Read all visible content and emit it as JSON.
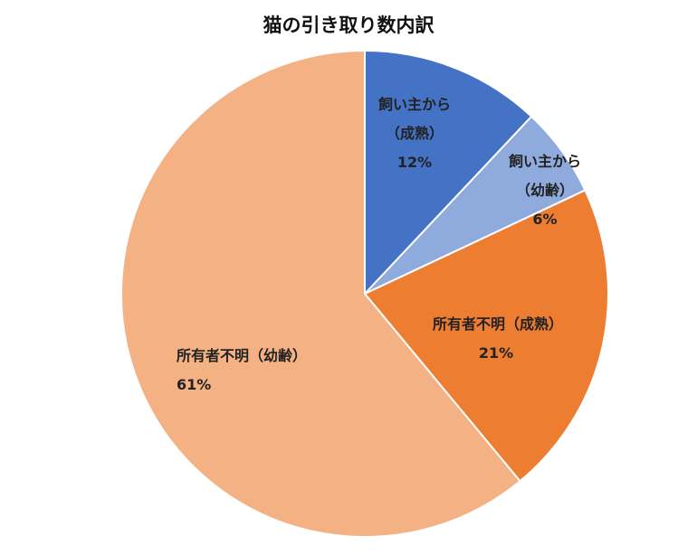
{
  "chart_data": {
    "type": "pie",
    "title": "猫の引き取り数内訳",
    "categories": [
      "飼い主から（成熟）",
      "飼い主から（幼齢）",
      "所有者不明（成熟）",
      "所有者不明（幼齢）"
    ],
    "values": [
      12,
      6,
      21,
      61
    ],
    "value_labels": [
      "12%",
      "6%",
      "21%",
      "61%"
    ],
    "colors": [
      "#4472c4",
      "#8faadc",
      "#ed7d31",
      "#f4b183"
    ]
  }
}
